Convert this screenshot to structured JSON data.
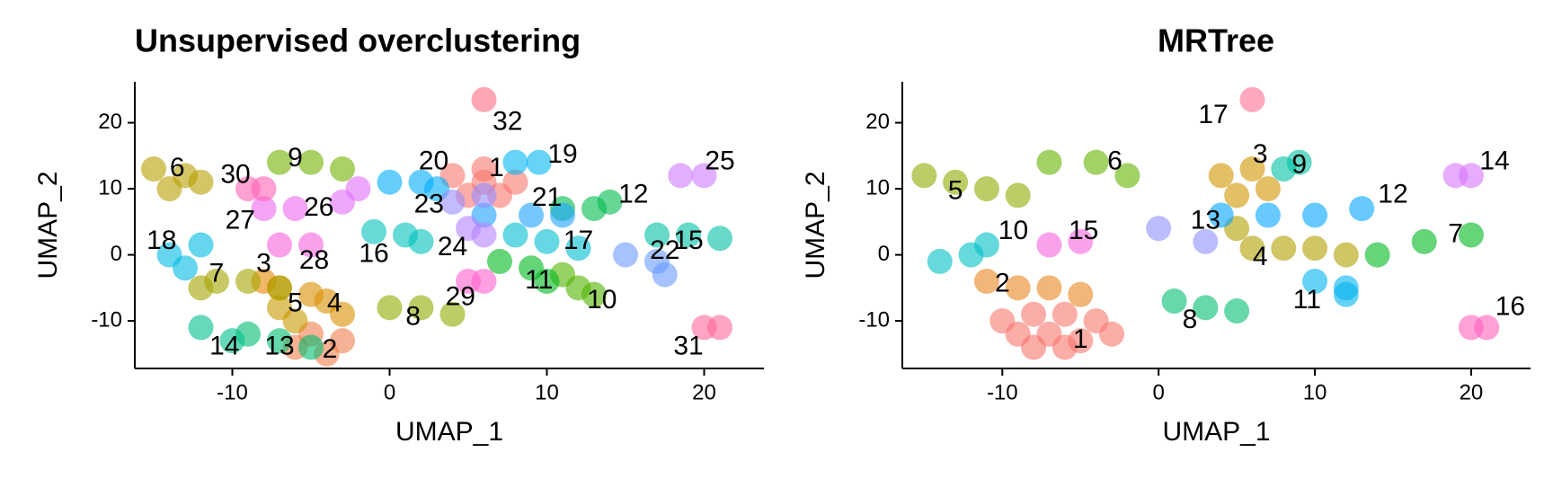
{
  "chart_data": [
    {
      "type": "scatter",
      "title": "Unsupervised overclustering",
      "x_label": "UMAP_1",
      "y_label": "UMAP_2",
      "xlim": [
        -16.2,
        23.8
      ],
      "ylim": [
        -17.2,
        26.2
      ],
      "xticks": [
        -10,
        0,
        10,
        20
      ],
      "yticks": [
        -10,
        0,
        10,
        20
      ],
      "series": [
        {
          "name": "1",
          "color": "#F8766D",
          "x": [
            4,
            6,
            8,
            5,
            7,
            6
          ],
          "y": [
            12,
            13,
            11,
            9,
            9,
            11
          ],
          "label_at": [
            6.8,
            13
          ]
        },
        {
          "name": "2",
          "color": "#F07E4F",
          "x": [
            -5,
            -3,
            -4,
            -6
          ],
          "y": [
            -12,
            -13,
            -15,
            -14
          ],
          "label_at": [
            -3.8,
            -14.5
          ]
        },
        {
          "name": "3",
          "color": "#E58700",
          "x": [
            -8,
            -7
          ],
          "y": [
            -4,
            -5
          ],
          "label_at": [
            -8,
            -1.5
          ]
        },
        {
          "name": "4",
          "color": "#D89000",
          "x": [
            -4,
            -3,
            -5
          ],
          "y": [
            -7,
            -9,
            -6
          ],
          "label_at": [
            -3.5,
            -7.5
          ]
        },
        {
          "name": "5",
          "color": "#C99800",
          "x": [
            -7,
            -6
          ],
          "y": [
            -8,
            -10
          ],
          "label_at": [
            -6,
            -7.5
          ]
        },
        {
          "name": "6",
          "color": "#B79F00",
          "x": [
            -15,
            -13,
            -12,
            -14
          ],
          "y": [
            13,
            12,
            11,
            10
          ],
          "label_at": [
            -13.5,
            13
          ]
        },
        {
          "name": "7",
          "color": "#A3A500",
          "x": [
            -11,
            -9,
            -7,
            -12
          ],
          "y": [
            -4,
            -4,
            -5,
            -5
          ],
          "label_at": [
            -11,
            -3
          ]
        },
        {
          "name": "8",
          "color": "#8DAB00",
          "x": [
            0,
            2,
            4
          ],
          "y": [
            -8,
            -8,
            -9
          ],
          "label_at": [
            1.5,
            -9.5
          ]
        },
        {
          "name": "9",
          "color": "#72B000",
          "x": [
            -7,
            -5,
            -3
          ],
          "y": [
            14,
            14,
            13
          ],
          "label_at": [
            -6,
            14.5
          ]
        },
        {
          "name": "10",
          "color": "#52B400",
          "x": [
            11,
            12,
            13
          ],
          "y": [
            -3,
            -5,
            -6
          ],
          "label_at": [
            13.5,
            -7
          ]
        },
        {
          "name": "11",
          "color": "#00B81F",
          "x": [
            7,
            9,
            10
          ],
          "y": [
            -1,
            -2,
            -4
          ],
          "label_at": [
            9.5,
            -4
          ]
        },
        {
          "name": "12",
          "color": "#00BB4E",
          "x": [
            11,
            13,
            14
          ],
          "y": [
            7,
            7,
            8
          ],
          "label_at": [
            15.5,
            9
          ]
        },
        {
          "name": "13",
          "color": "#00BD6F",
          "x": [
            -9,
            -7,
            -5
          ],
          "y": [
            -12,
            -13,
            -14
          ],
          "label_at": [
            -7,
            -14
          ]
        },
        {
          "name": "14",
          "color": "#00BF8C",
          "x": [
            -12,
            -10
          ],
          "y": [
            -11,
            -13
          ],
          "label_at": [
            -10.5,
            -14
          ]
        },
        {
          "name": "15",
          "color": "#00C0A5",
          "x": [
            17,
            19,
            21
          ],
          "y": [
            3,
            3,
            2.5
          ],
          "label_at": [
            19,
            2
          ]
        },
        {
          "name": "16",
          "color": "#00C1BC",
          "x": [
            -1,
            1,
            2
          ],
          "y": [
            3.5,
            3,
            2
          ],
          "label_at": [
            -1,
            0
          ]
        },
        {
          "name": "17",
          "color": "#00BED0",
          "x": [
            8,
            10,
            12
          ],
          "y": [
            3,
            2,
            1
          ],
          "label_at": [
            12,
            2
          ]
        },
        {
          "name": "18",
          "color": "#00BAE2",
          "x": [
            -14,
            -13,
            -12
          ],
          "y": [
            0,
            -2,
            1.5
          ],
          "label_at": [
            -14.5,
            2
          ]
        },
        {
          "name": "19",
          "color": "#00B5F1",
          "x": [
            8,
            9.5
          ],
          "y": [
            14,
            14
          ],
          "label_at": [
            11,
            15
          ]
        },
        {
          "name": "20",
          "color": "#00ADFC",
          "x": [
            0,
            2,
            3
          ],
          "y": [
            11,
            11,
            10
          ],
          "label_at": [
            2.8,
            14
          ]
        },
        {
          "name": "21",
          "color": "#1AA2FF",
          "x": [
            6,
            9,
            11
          ],
          "y": [
            6,
            6,
            6
          ],
          "label_at": [
            10,
            8.5
          ]
        },
        {
          "name": "22",
          "color": "#6B9BFF",
          "x": [
            15,
            17,
            17.5
          ],
          "y": [
            0,
            -1,
            -3
          ],
          "label_at": [
            17.5,
            0.5
          ]
        },
        {
          "name": "23",
          "color": "#978EFF",
          "x": [
            4,
            6
          ],
          "y": [
            8,
            9
          ],
          "label_at": [
            2.5,
            7.5
          ]
        },
        {
          "name": "24",
          "color": "#B683FF",
          "x": [
            5,
            6
          ],
          "y": [
            4,
            3
          ],
          "label_at": [
            4,
            1
          ]
        },
        {
          "name": "25",
          "color": "#CE79FF",
          "x": [
            18.5,
            20
          ],
          "y": [
            12,
            12
          ],
          "label_at": [
            21,
            14
          ]
        },
        {
          "name": "26",
          "color": "#E16EF8",
          "x": [
            -3,
            -2
          ],
          "y": [
            8,
            10
          ],
          "label_at": [
            -4.5,
            7
          ]
        },
        {
          "name": "27",
          "color": "#EE68EE",
          "x": [
            -8,
            -6
          ],
          "y": [
            7,
            7
          ],
          "label_at": [
            -9.5,
            5
          ]
        },
        {
          "name": "28",
          "color": "#F863DF",
          "x": [
            -7,
            -5
          ],
          "y": [
            1.5,
            1.5
          ],
          "label_at": [
            -4.8,
            -1
          ]
        },
        {
          "name": "29",
          "color": "#FE61CD",
          "x": [
            5,
            6
          ],
          "y": [
            -4,
            -4
          ],
          "label_at": [
            4.5,
            -6.5
          ]
        },
        {
          "name": "30",
          "color": "#FF63B6",
          "x": [
            -9,
            -8
          ],
          "y": [
            10,
            10
          ],
          "label_at": [
            -9.8,
            12
          ]
        },
        {
          "name": "31",
          "color": "#FF679C",
          "x": [
            20,
            21
          ],
          "y": [
            -11,
            -11
          ],
          "label_at": [
            19,
            -14
          ]
        },
        {
          "name": "32",
          "color": "#FC6D82",
          "x": [
            6
          ],
          "y": [
            23.5
          ],
          "label_at": [
            7.5,
            20
          ]
        }
      ]
    },
    {
      "type": "scatter",
      "title": "MRTree",
      "x_label": "UMAP_1",
      "y_label": "UMAP_2",
      "xlim": [
        -16.4,
        23.8
      ],
      "ylim": [
        -17.2,
        26.2
      ],
      "xticks": [
        -10,
        0,
        10,
        20
      ],
      "yticks": [
        -10,
        0,
        10,
        20
      ],
      "series": [
        {
          "name": "1",
          "color": "#F8766D",
          "x": [
            -10,
            -8,
            -6,
            -4,
            -9,
            -7,
            -5,
            -3,
            -8,
            -6
          ],
          "y": [
            -10,
            -9,
            -9,
            -10,
            -12,
            -12,
            -13,
            -12,
            -14,
            -14
          ],
          "label_at": [
            -5,
            -13
          ]
        },
        {
          "name": "2",
          "color": "#E7851E",
          "x": [
            -11,
            -9,
            -7,
            -5
          ],
          "y": [
            -4,
            -5,
            -5,
            -6
          ],
          "label_at": [
            -10,
            -4.5
          ]
        },
        {
          "name": "3",
          "color": "#D09400",
          "x": [
            4,
            6,
            7,
            5
          ],
          "y": [
            12,
            13,
            10,
            9
          ],
          "label_at": [
            6.5,
            15
          ]
        },
        {
          "name": "4",
          "color": "#B2A000",
          "x": [
            5,
            6,
            8,
            10,
            12
          ],
          "y": [
            4,
            1,
            1,
            1,
            0
          ],
          "label_at": [
            6.5,
            -0.5
          ]
        },
        {
          "name": "5",
          "color": "#8FAA00",
          "x": [
            -15,
            -13,
            -11,
            -9
          ],
          "y": [
            12,
            11,
            10,
            9
          ],
          "label_at": [
            -13,
            9.5
          ]
        },
        {
          "name": "6",
          "color": "#64B200",
          "x": [
            -7,
            -4,
            -2
          ],
          "y": [
            14,
            14,
            12
          ],
          "label_at": [
            -2.8,
            14
          ]
        },
        {
          "name": "7",
          "color": "#00B81F",
          "x": [
            14,
            17,
            20
          ],
          "y": [
            0,
            2,
            3
          ],
          "label_at": [
            19,
            3
          ]
        },
        {
          "name": "8",
          "color": "#00BE70",
          "x": [
            1,
            3,
            5
          ],
          "y": [
            -7,
            -8,
            -8.5
          ],
          "label_at": [
            2,
            -10
          ]
        },
        {
          "name": "9",
          "color": "#00C1A3",
          "x": [
            8,
            9
          ],
          "y": [
            13,
            14
          ],
          "label_at": [
            9,
            13.5
          ]
        },
        {
          "name": "10",
          "color": "#00BFC4",
          "x": [
            -14,
            -12,
            -11
          ],
          "y": [
            -1,
            0,
            1.5
          ],
          "label_at": [
            -9.3,
            3.5
          ]
        },
        {
          "name": "11",
          "color": "#00B4EF",
          "x": [
            10,
            12,
            12
          ],
          "y": [
            -4,
            -5,
            -6
          ],
          "label_at": [
            9.5,
            -7
          ]
        },
        {
          "name": "12",
          "color": "#00A5FF",
          "x": [
            4,
            7,
            10,
            13
          ],
          "y": [
            6,
            6,
            6,
            7
          ],
          "label_at": [
            15,
            9
          ]
        },
        {
          "name": "13",
          "color": "#8F91FF",
          "x": [
            0,
            3
          ],
          "y": [
            4,
            2
          ],
          "label_at": [
            3,
            5
          ]
        },
        {
          "name": "14",
          "color": "#D774FD",
          "x": [
            19,
            20
          ],
          "y": [
            12,
            12
          ],
          "label_at": [
            21.5,
            14
          ]
        },
        {
          "name": "15",
          "color": "#F763E0",
          "x": [
            -7,
            -5
          ],
          "y": [
            1.5,
            2
          ],
          "label_at": [
            -4.8,
            3.5
          ]
        },
        {
          "name": "16",
          "color": "#FF62BC",
          "x": [
            20,
            21
          ],
          "y": [
            -11,
            -11
          ],
          "label_at": [
            22.5,
            -8
          ]
        },
        {
          "name": "17",
          "color": "#FF6C91",
          "x": [
            6
          ],
          "y": [
            23.5
          ],
          "label_at": [
            3.5,
            21
          ]
        }
      ]
    }
  ]
}
